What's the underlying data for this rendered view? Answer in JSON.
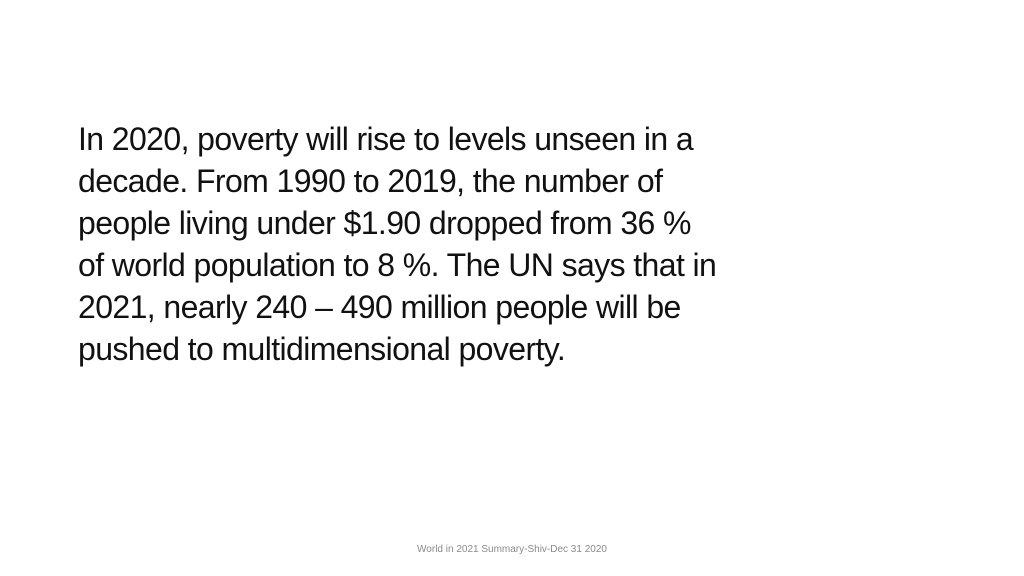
{
  "slide": {
    "body_lines": [
      "In 2020, poverty will rise to levels unseen in a",
      "decade. From 1990 to 2019, the number of",
      "people living under $1.90 dropped from 36 %",
      "of world population to 8 %. The UN says that in",
      "2021, nearly 240 – 490 million people will be",
      "pushed to multidimensional poverty."
    ],
    "footer": "World in 2021 Summary-Shiv-Dec 31 2020",
    "colors": {
      "background": "#ffffff",
      "text": "#111111",
      "footer_text": "#8a8a8a"
    }
  }
}
